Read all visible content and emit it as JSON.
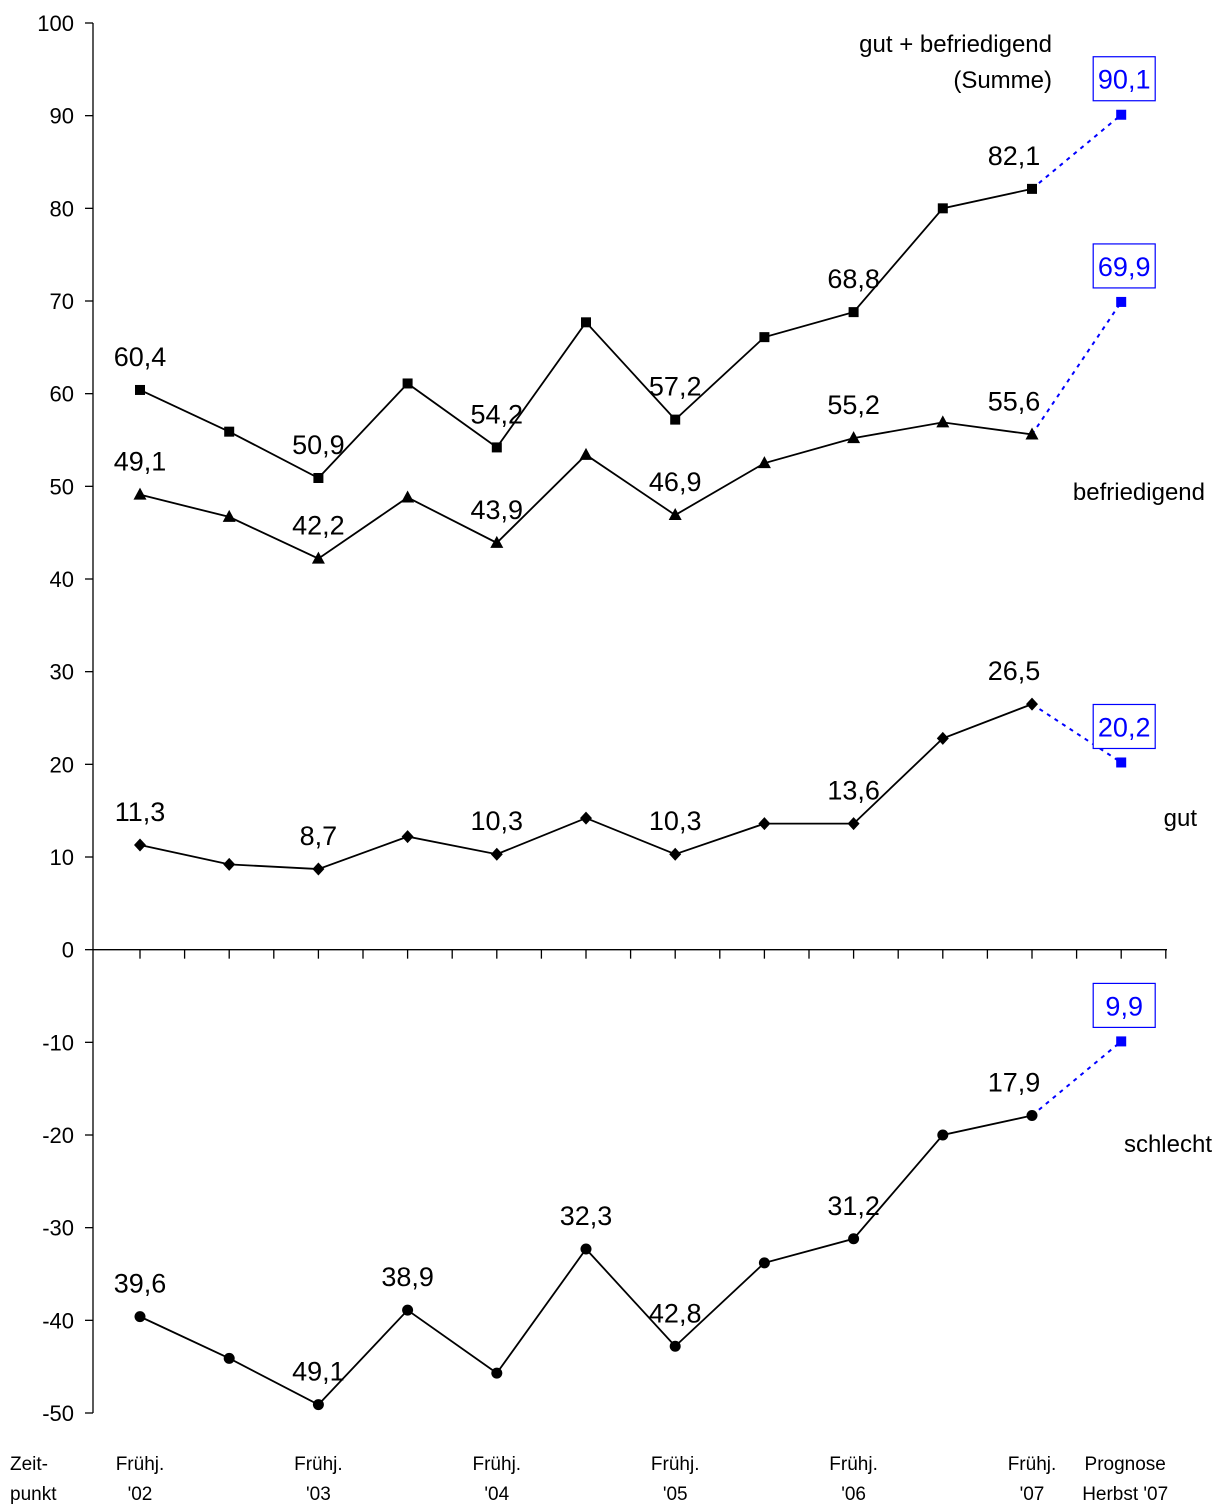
{
  "chart_data": {
    "type": "line",
    "ylim": [
      -50,
      100
    ],
    "yticks": [
      100,
      90,
      80,
      70,
      60,
      50,
      40,
      30,
      20,
      10,
      0,
      -10,
      -20,
      -30,
      -40,
      -50
    ],
    "x_axis": {
      "prefix": [
        "Zeit-",
        "punkt"
      ],
      "labels": [
        {
          "line1": "Frühj.",
          "line2": "'02",
          "index": 0
        },
        {
          "line1": "Frühj.",
          "line2": "'03",
          "index": 2
        },
        {
          "line1": "Frühj.",
          "line2": "'04",
          "index": 4
        },
        {
          "line1": "Frühj.",
          "line2": "'05",
          "index": 6
        },
        {
          "line1": "Frühj.",
          "line2": "'06",
          "index": 8
        },
        {
          "line1": "Frühj.",
          "line2": "'07",
          "index": 10
        },
        {
          "line1": "Prognose",
          "line2": "Herbst '07",
          "index": 11
        }
      ]
    },
    "grid": false,
    "forecast_color": "#0000ff",
    "series": [
      {
        "name": "gut + befriedigend (Summe)",
        "label_lines": [
          "gut + befriedigend",
          "(Summe)"
        ],
        "marker": "square",
        "values": [
          60.4,
          55.9,
          50.9,
          61.1,
          54.2,
          67.7,
          57.2,
          66.1,
          68.8,
          80.0,
          82.1
        ],
        "forecast": 90.1,
        "forecast_label": "90,1",
        "data_labels": [
          {
            "index": 0,
            "text": "60,4"
          },
          {
            "index": 2,
            "text": "50,9"
          },
          {
            "index": 4,
            "text": "54,2"
          },
          {
            "index": 6,
            "text": "57,2"
          },
          {
            "index": 8,
            "text": "68,8"
          },
          {
            "index": 10,
            "text": "82,1"
          }
        ]
      },
      {
        "name": "befriedigend",
        "label_lines": [
          "befriedigend"
        ],
        "marker": "triangle",
        "values": [
          49.1,
          46.7,
          42.2,
          48.8,
          43.9,
          53.4,
          46.9,
          52.5,
          55.2,
          56.9,
          55.6
        ],
        "forecast": 69.9,
        "forecast_label": "69,9",
        "data_labels": [
          {
            "index": 0,
            "text": "49,1"
          },
          {
            "index": 2,
            "text": "42,2"
          },
          {
            "index": 4,
            "text": "43,9"
          },
          {
            "index": 6,
            "text": "46,9"
          },
          {
            "index": 8,
            "text": "55,2"
          },
          {
            "index": 10,
            "text": "55,6"
          }
        ]
      },
      {
        "name": "gut",
        "label_lines": [
          "gut"
        ],
        "marker": "diamond",
        "values": [
          11.3,
          9.2,
          8.7,
          12.2,
          10.3,
          14.2,
          10.3,
          13.6,
          13.6,
          22.8,
          26.5
        ],
        "forecast": 20.2,
        "forecast_label": "20,2",
        "data_labels": [
          {
            "index": 0,
            "text": "11,3"
          },
          {
            "index": 2,
            "text": "8,7"
          },
          {
            "index": 4,
            "text": "10,3"
          },
          {
            "index": 6,
            "text": "10,3"
          },
          {
            "index": 8,
            "text": "13,6"
          },
          {
            "index": 10,
            "text": "26,5"
          }
        ]
      },
      {
        "name": "schlecht",
        "label_lines": [
          "schlecht"
        ],
        "marker": "circle",
        "values": [
          -39.6,
          -44.1,
          -49.1,
          -38.9,
          -45.7,
          -32.3,
          -42.8,
          -33.8,
          -31.2,
          -20.0,
          -17.9
        ],
        "forecast": -9.9,
        "forecast_label": "9,9",
        "data_labels": [
          {
            "index": 0,
            "text": "39,6"
          },
          {
            "index": 2,
            "text": "49,1"
          },
          {
            "index": 3,
            "text": "38,9"
          },
          {
            "index": 5,
            "text": "32,3"
          },
          {
            "index": 6,
            "text": "42,8"
          },
          {
            "index": 8,
            "text": "31,2"
          },
          {
            "index": 10,
            "text": "17,9"
          }
        ]
      }
    ]
  }
}
